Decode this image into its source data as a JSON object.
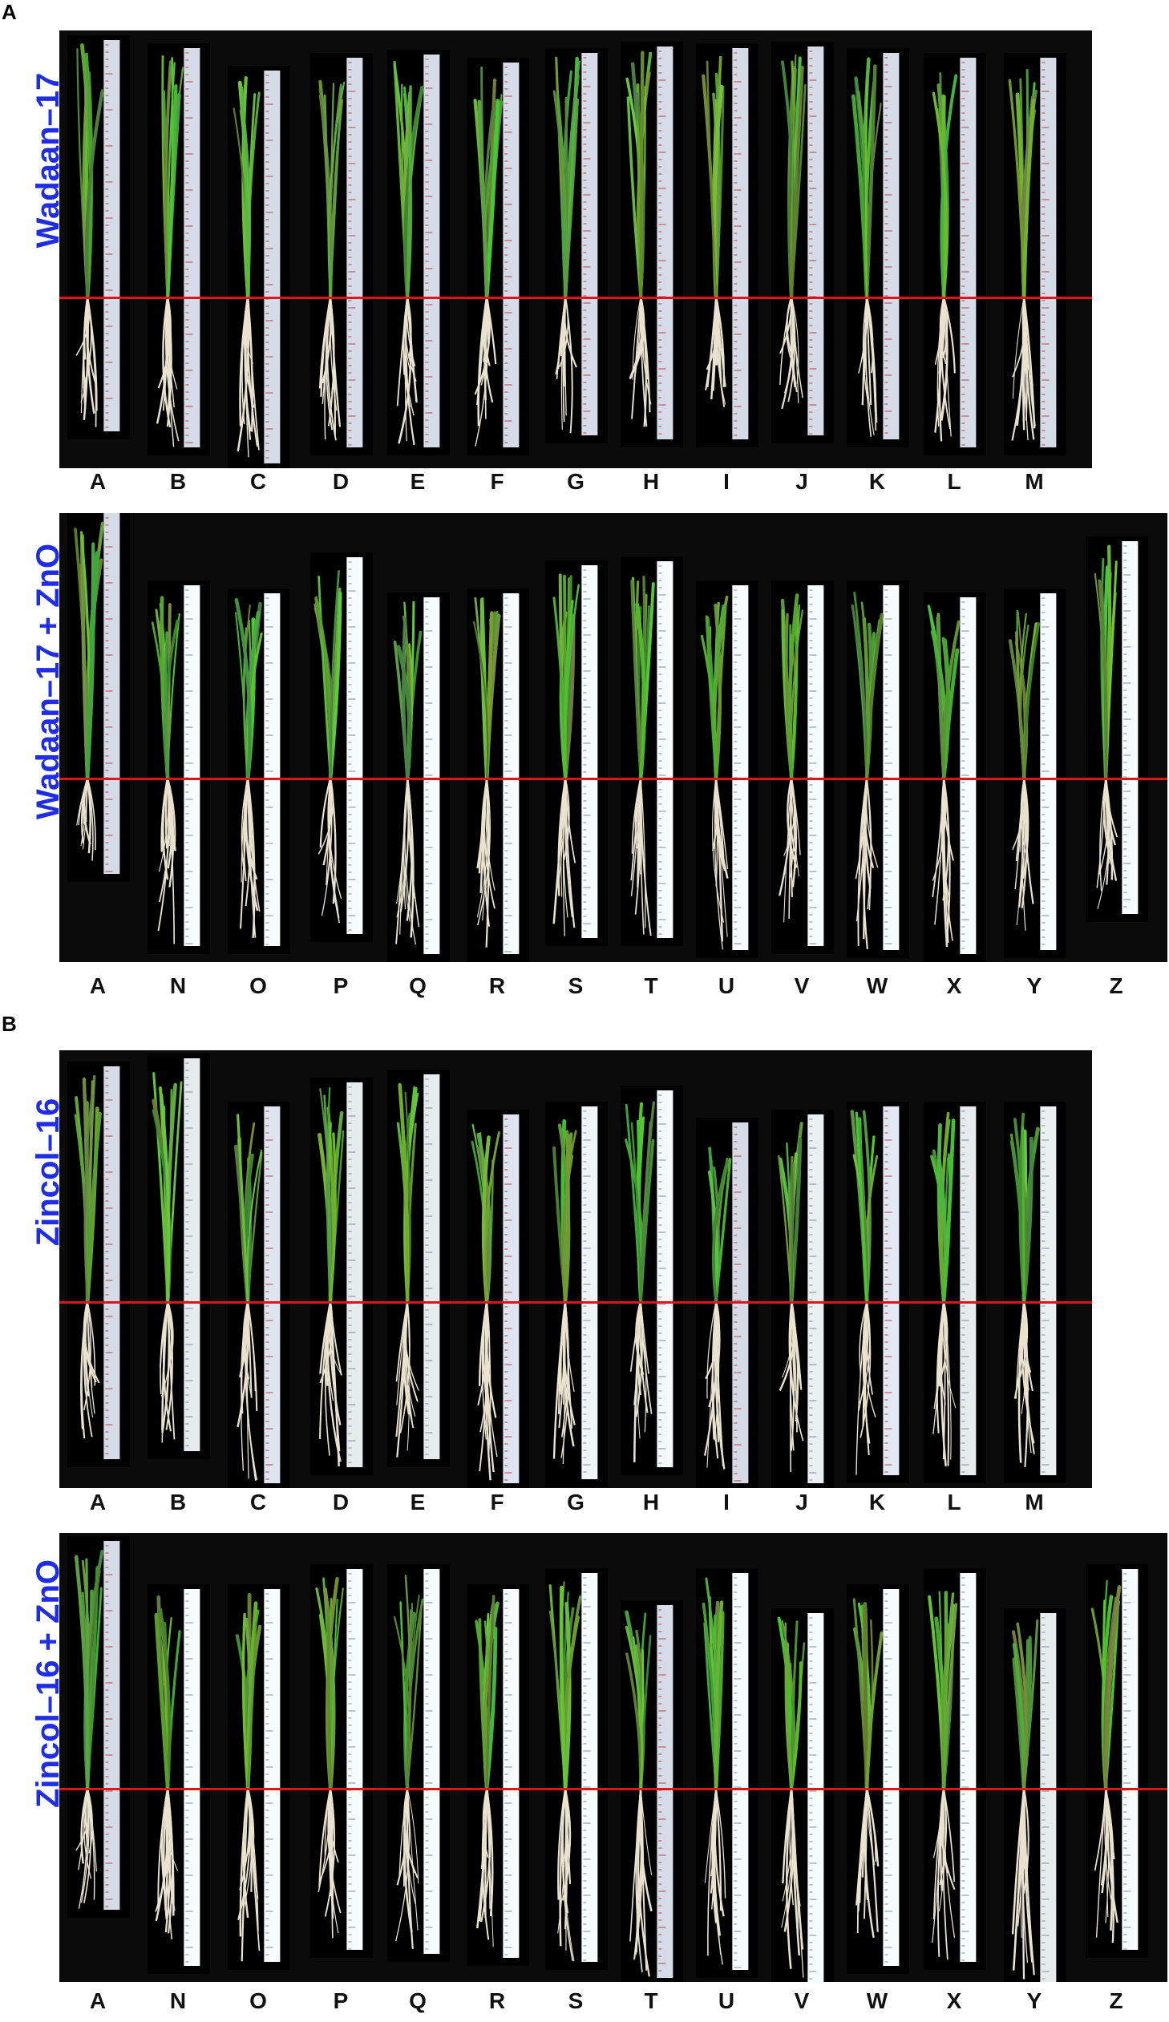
{
  "figure": {
    "section_a_letter": "A",
    "section_b_letter": "B",
    "accent_label_color": "#1f2ee6",
    "reference_line_color": "#e01414"
  },
  "panels": [
    {
      "id": "p1",
      "side_label": "Wadaan–17",
      "labels": [
        "A",
        "B",
        "C",
        "D",
        "E",
        "F",
        "G",
        "H",
        "I",
        "J",
        "K",
        "L",
        "M"
      ]
    },
    {
      "id": "p2",
      "side_label": "Wadaan–17 + ZnO",
      "labels": [
        "A",
        "N",
        "O",
        "P",
        "Q",
        "R",
        "S",
        "T",
        "U",
        "V",
        "W",
        "X",
        "Y",
        "Z"
      ]
    },
    {
      "id": "p3",
      "side_label": "Zincol–16",
      "labels": [
        "A",
        "B",
        "C",
        "D",
        "E",
        "F",
        "G",
        "H",
        "I",
        "J",
        "K",
        "L",
        "M"
      ]
    },
    {
      "id": "p4",
      "side_label": "Zincol–16 + ZnO",
      "labels": [
        "A",
        "N",
        "O",
        "P",
        "Q",
        "R",
        "S",
        "T",
        "U",
        "V",
        "W",
        "X",
        "Y",
        "Z"
      ]
    }
  ]
}
